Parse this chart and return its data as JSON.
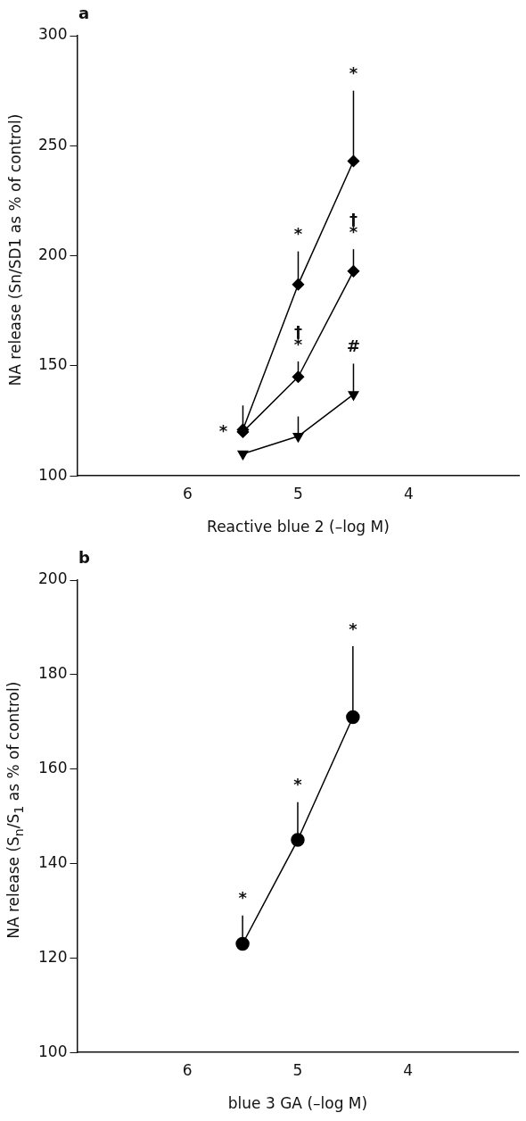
{
  "chart_data": [
    {
      "type": "line",
      "xlabel": "Reactive blue 2 (–log M)",
      "ylabel": "NA release (Sn/SD1 as % of control)",
      "xlim": [
        7,
        3
      ],
      "xticks": [
        6,
        5,
        4
      ],
      "ylim": [
        100,
        300
      ],
      "yticks": [
        100,
        150,
        200,
        250,
        300
      ],
      "grid": false,
      "legend": false,
      "line_style": "solid",
      "annotations": [
        "a",
        {
          "text": "*",
          "x": 5.5,
          "y": 120
        },
        {
          "text": "*",
          "x": 5.0,
          "y": 187
        },
        {
          "text": "*",
          "x": 5.0,
          "y": 145
        },
        {
          "text": "†",
          "x": 5.0,
          "y": 145
        },
        {
          "text": "*",
          "x": 4.5,
          "y": 275
        },
        {
          "text": "*",
          "x": 4.5,
          "y": 203
        },
        {
          "text": "†",
          "x": 4.5,
          "y": 203
        },
        {
          "text": "#",
          "x": 4.5,
          "y": 137
        }
      ],
      "series": [
        {
          "color": "#000000",
          "marker": "diamond",
          "x": [
            5.5,
            5.0,
            4.5
          ],
          "values": [
            121,
            187,
            243
          ],
          "errors": [
            [
              121,
              132
            ],
            [
              187,
              202
            ],
            [
              243,
              275
            ]
          ]
        },
        {
          "color": "#000000",
          "marker": "diamond",
          "x": [
            5.5,
            5.0,
            4.5
          ],
          "values": [
            120,
            145,
            193
          ],
          "errors": [
            null,
            [
              145,
              152
            ],
            [
              193,
              203
            ]
          ]
        },
        {
          "color": "#000000",
          "marker": "triangle",
          "x": [
            5.5,
            5.0,
            4.5
          ],
          "values": [
            110,
            118,
            137
          ],
          "errors": [
            null,
            [
              118,
              127
            ],
            [
              137,
              151
            ]
          ]
        }
      ]
    },
    {
      "type": "line",
      "xlabel": "blue 3 GA (–log M)",
      "ylabel": "NA release (S$_{n}$/S$_{1}$ as % of control)",
      "xlim": [
        7,
        3
      ],
      "xticks": [
        6,
        5,
        4
      ],
      "ylim": [
        100,
        200
      ],
      "yticks": [
        100,
        120,
        140,
        160,
        180,
        200
      ],
      "grid": false,
      "legend": false,
      "line_style": "solid",
      "annotations": [
        "b",
        {
          "text": "*",
          "x": 5.5,
          "y": 123
        },
        {
          "text": "*",
          "x": 5.0,
          "y": 145
        },
        {
          "text": "*",
          "x": 4.5,
          "y": 186
        }
      ],
      "series": [
        {
          "color": "#000000",
          "marker": "circle",
          "x": [
            5.5,
            5.0,
            4.5
          ],
          "values": [
            123,
            145,
            171
          ],
          "errors": [
            [
              123,
              129
            ],
            [
              145,
              153
            ],
            [
              171,
              186
            ]
          ]
        }
      ]
    }
  ]
}
